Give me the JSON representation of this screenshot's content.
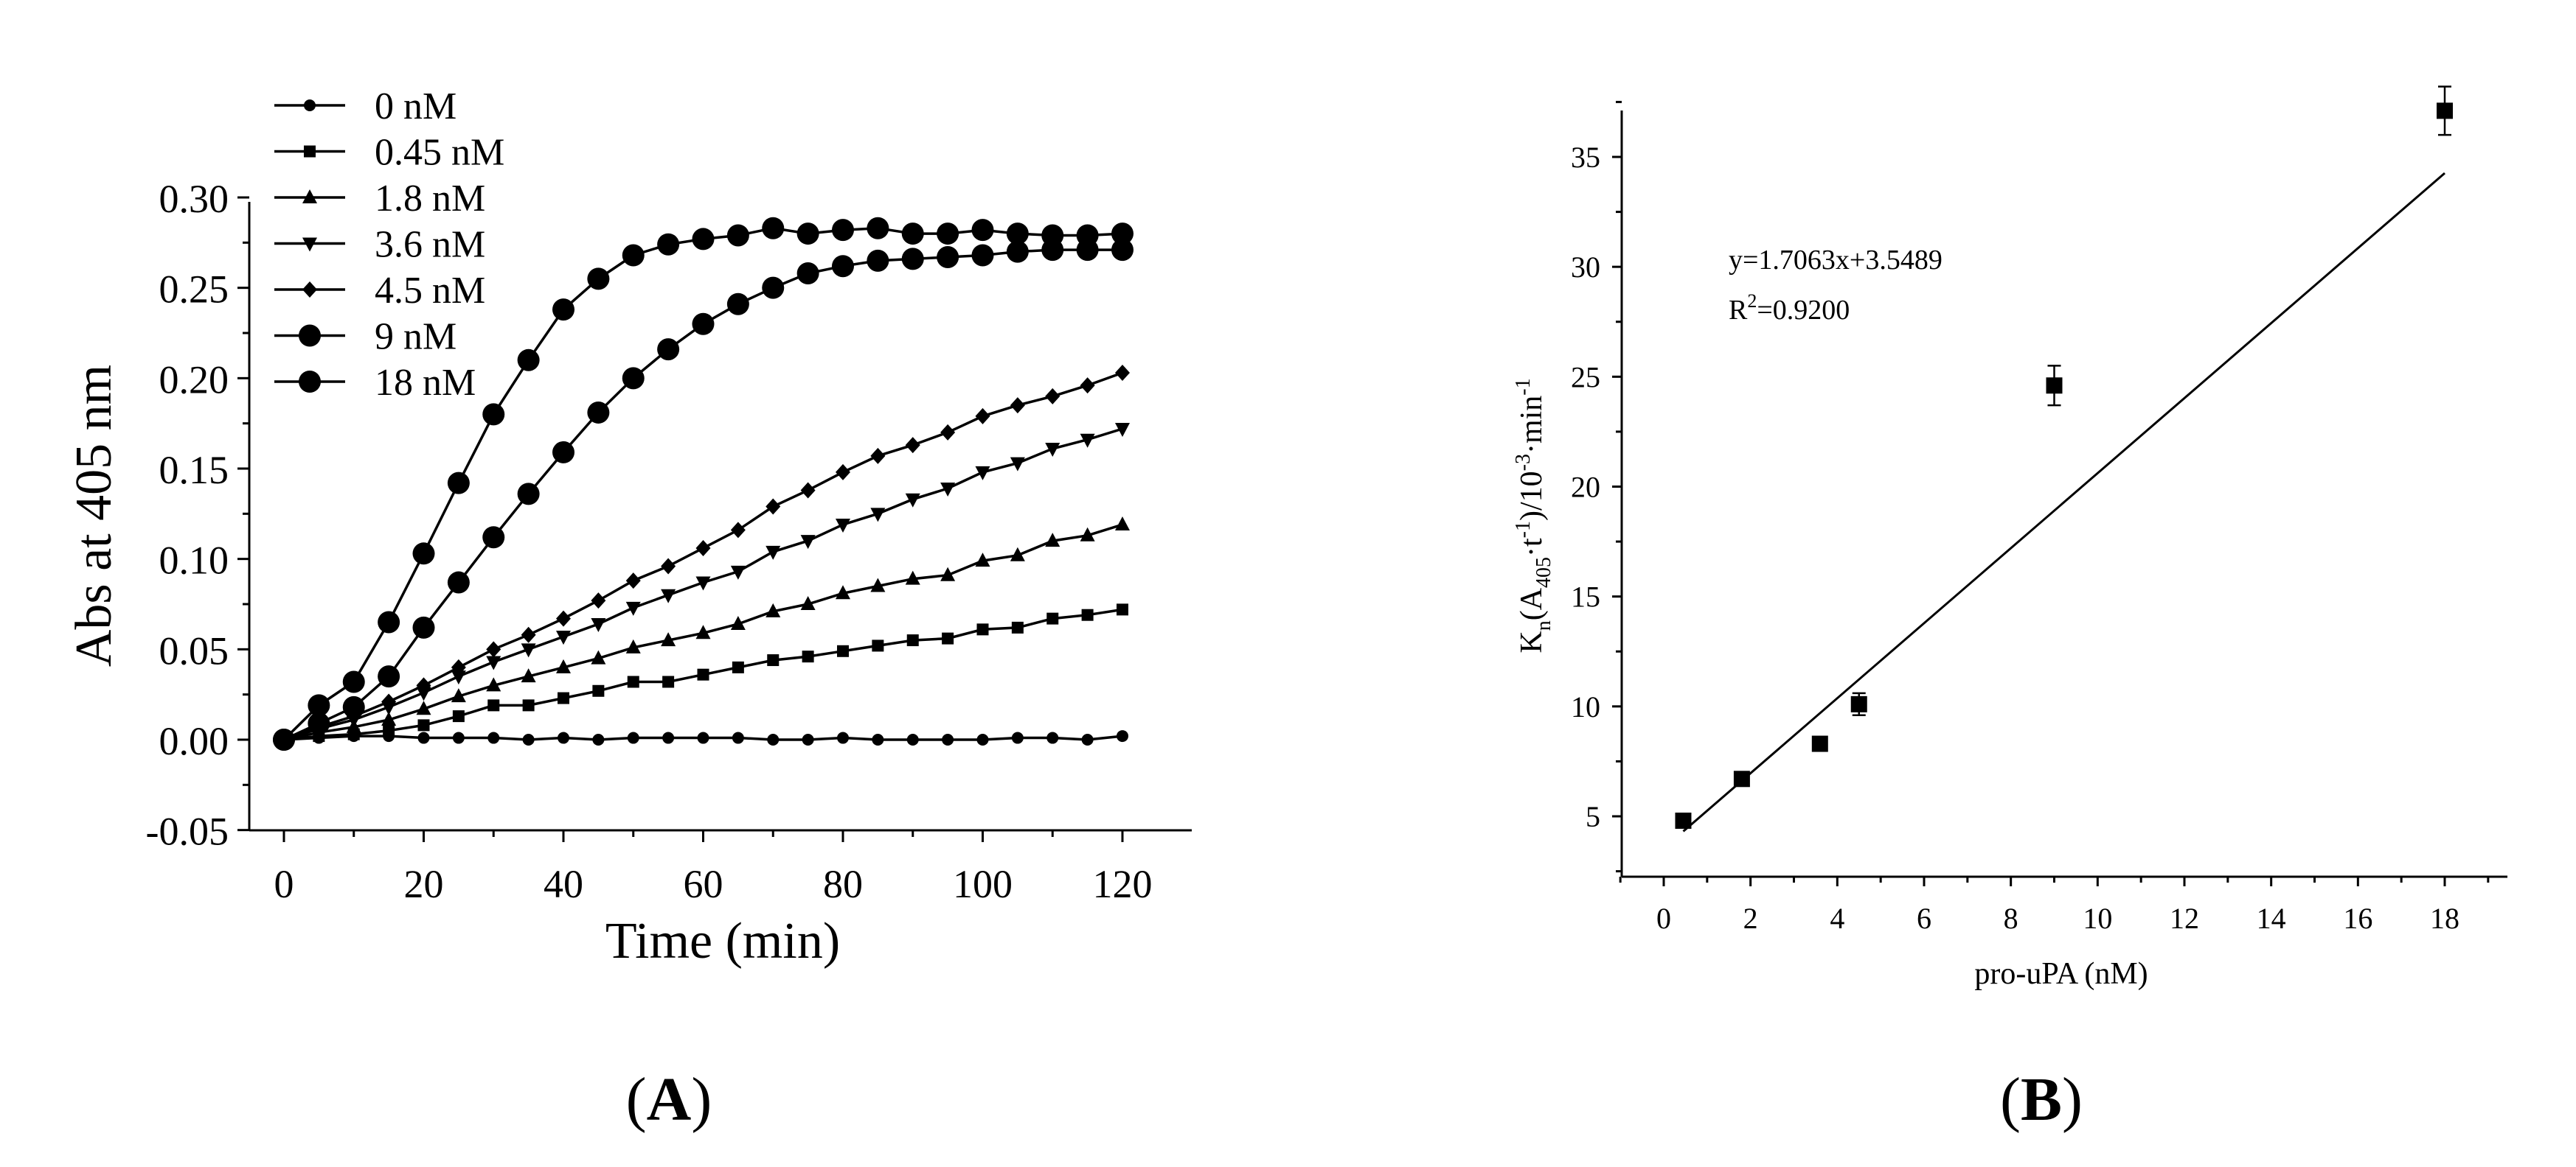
{
  "chart_data": [
    {
      "id": "A",
      "type": "line",
      "panel_label": "A",
      "xlabel": "Time (min)",
      "ylabel": "Abs at 405 nm",
      "xlim": [
        -4,
        124
      ],
      "ylim": [
        -0.05,
        0.3
      ],
      "xticks": [
        "0",
        "20",
        "40",
        "60",
        "80",
        "100",
        "120"
      ],
      "yticks": [
        "-0.05",
        "0.00",
        "0.05",
        "0.10",
        "0.15",
        "0.20",
        "0.25",
        "0.30"
      ],
      "legend_position": "top-left",
      "x": [
        0,
        5,
        10,
        15,
        20,
        25,
        30,
        35,
        40,
        45,
        50,
        55,
        60,
        65,
        70,
        75,
        80,
        85,
        90,
        95,
        100,
        105,
        110,
        115,
        120
      ],
      "series": [
        {
          "name": "0 nM",
          "marker": "circle-small",
          "values": [
            0.0,
            0.001,
            0.002,
            0.002,
            0.001,
            0.001,
            0.001,
            0.0,
            0.001,
            0.0,
            0.001,
            0.001,
            0.001,
            0.001,
            0.0,
            0.0,
            0.001,
            0.0,
            0.0,
            0.0,
            0.0,
            0.001,
            0.001,
            0.0,
            0.002
          ]
        },
        {
          "name": "0.45 nM",
          "marker": "square",
          "values": [
            0.0,
            0.002,
            0.003,
            0.005,
            0.008,
            0.013,
            0.019,
            0.019,
            0.023,
            0.027,
            0.032,
            0.032,
            0.036,
            0.04,
            0.044,
            0.046,
            0.049,
            0.052,
            0.055,
            0.056,
            0.061,
            0.062,
            0.067,
            0.069,
            0.072
          ]
        },
        {
          "name": "1.8 nM",
          "marker": "triangle-up",
          "values": [
            0.0,
            0.004,
            0.007,
            0.011,
            0.017,
            0.024,
            0.03,
            0.035,
            0.04,
            0.045,
            0.051,
            0.055,
            0.059,
            0.064,
            0.071,
            0.075,
            0.081,
            0.085,
            0.089,
            0.091,
            0.099,
            0.102,
            0.11,
            0.113,
            0.119
          ]
        },
        {
          "name": "3.6 nM",
          "marker": "triangle-down",
          "values": [
            0.0,
            0.006,
            0.011,
            0.018,
            0.026,
            0.035,
            0.043,
            0.05,
            0.057,
            0.064,
            0.073,
            0.08,
            0.087,
            0.093,
            0.104,
            0.11,
            0.119,
            0.125,
            0.133,
            0.139,
            0.148,
            0.153,
            0.161,
            0.166,
            0.172
          ]
        },
        {
          "name": "4.5 nM",
          "marker": "diamond",
          "values": [
            0.0,
            0.007,
            0.013,
            0.021,
            0.03,
            0.04,
            0.05,
            0.058,
            0.067,
            0.077,
            0.088,
            0.096,
            0.106,
            0.116,
            0.129,
            0.138,
            0.148,
            0.157,
            0.163,
            0.17,
            0.179,
            0.185,
            0.19,
            0.196,
            0.203
          ]
        },
        {
          "name": "9 nM",
          "marker": "circle-large",
          "values": [
            0.0,
            0.009,
            0.018,
            0.035,
            0.062,
            0.087,
            0.112,
            0.136,
            0.159,
            0.181,
            0.2,
            0.216,
            0.23,
            0.241,
            0.25,
            0.258,
            0.262,
            0.265,
            0.266,
            0.267,
            0.268,
            0.27,
            0.271,
            0.271,
            0.271
          ]
        },
        {
          "name": "18 nM",
          "marker": "circle-large",
          "values": [
            0.0,
            0.019,
            0.032,
            0.065,
            0.103,
            0.142,
            0.18,
            0.21,
            0.238,
            0.255,
            0.268,
            0.274,
            0.277,
            0.279,
            0.283,
            0.28,
            0.282,
            0.283,
            0.28,
            0.28,
            0.282,
            0.28,
            0.279,
            0.279,
            0.28
          ]
        }
      ]
    },
    {
      "id": "B",
      "type": "scatter",
      "panel_label": "B",
      "xlabel": "pro-uPA (nM)",
      "ylabel": "Kn(A405·t-1)/10-3·min-1",
      "xlim": [
        -1,
        19.5
      ],
      "ylim": [
        2,
        37.5
      ],
      "xticks": [
        "0",
        "2",
        "4",
        "6",
        "8",
        "10",
        "12",
        "14",
        "16",
        "18"
      ],
      "yticks": [
        "5",
        "10",
        "15",
        "20",
        "25",
        "30",
        "35"
      ],
      "points": [
        {
          "x": 0.45,
          "y": 4.8,
          "err": 0.3
        },
        {
          "x": 1.8,
          "y": 6.7,
          "err": 0.3
        },
        {
          "x": 3.6,
          "y": 8.3,
          "err": 0.3
        },
        {
          "x": 4.5,
          "y": 10.1,
          "err": 0.5
        },
        {
          "x": 9.0,
          "y": 24.6,
          "err": 0.9
        },
        {
          "x": 18.0,
          "y": 37.1,
          "err": 1.1
        }
      ],
      "fit": {
        "slope": 1.7063,
        "intercept": 3.5489,
        "x_start": 0.45,
        "x_end": 18
      },
      "annotation_equation": "y=1.7063x+3.5489",
      "annotation_r2_prefix": "R",
      "annotation_r2_sup": "2",
      "annotation_r2_value": "=0.9200",
      "ylabel_parts": {
        "k": "K",
        "k_sub": "n",
        "open": "(A",
        "a_sub": "405",
        "mid": "·t",
        "t_sup": "-1",
        "close": ")/10",
        "ten_sup": "-3",
        "tail": "·min",
        "min_sup": "-1"
      }
    }
  ],
  "panel_labels": {
    "a": "A",
    "b": "B"
  }
}
